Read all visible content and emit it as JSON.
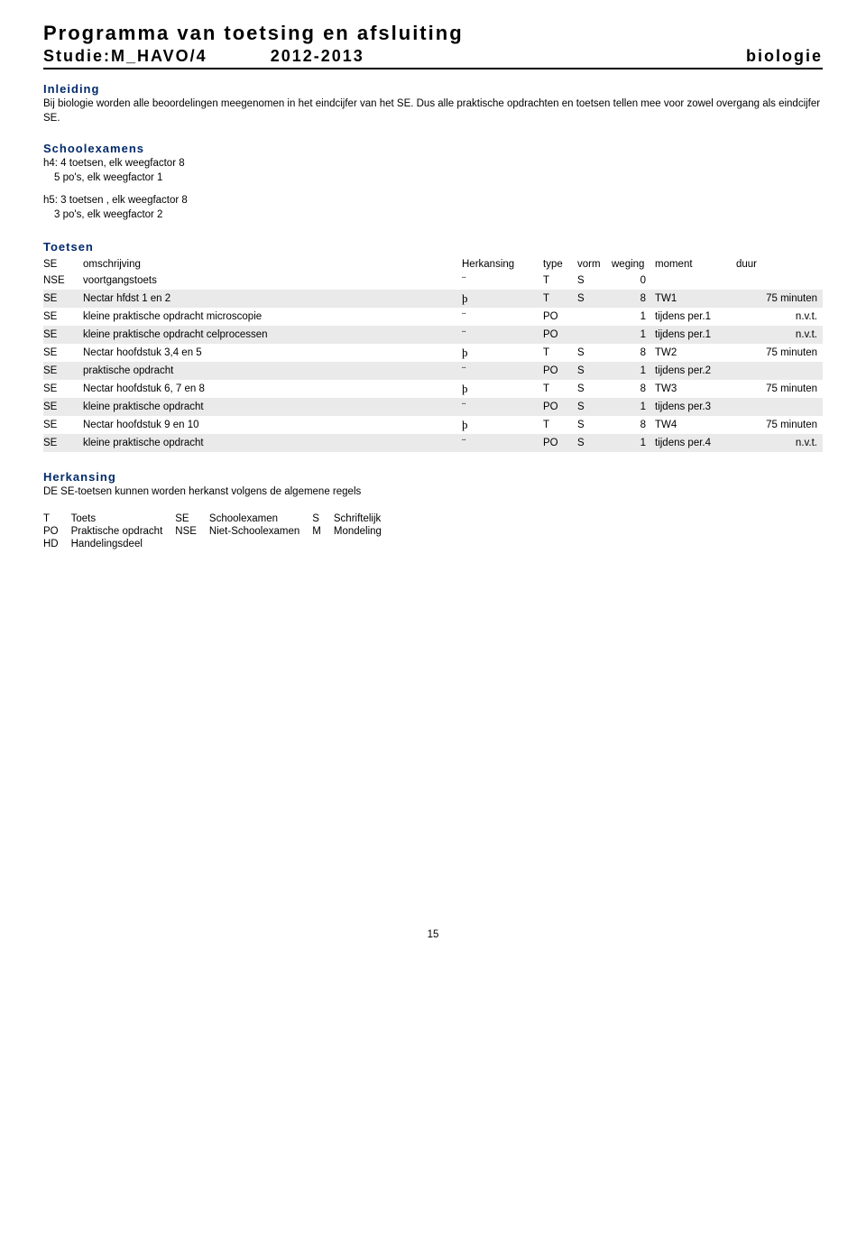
{
  "header": {
    "main_title": "Programma van toetsing en afsluiting",
    "study_label": "Studie:M_HAVO/4",
    "year": "2012-2013",
    "subject": "biologie"
  },
  "inleiding": {
    "heading": "Inleiding",
    "text": "Bij biologie worden alle beoordelingen meegenomen in het eindcijfer van het SE. Dus alle praktische opdrachten en toetsen tellen mee voor zowel overgang als eindcijfer SE."
  },
  "schoolexamens": {
    "heading": "Schoolexamens",
    "lines": [
      "h4: 4 toetsen, elk weegfactor 8",
      "5 po's, elk weegfactor 1",
      "",
      "h5: 3 toetsen , elk weegfactor 8",
      "3 po's, elk weegfactor 2"
    ]
  },
  "toetsen": {
    "heading": "Toetsen",
    "columns": {
      "se": "SE",
      "omschrijving": "omschrijving",
      "herkansing": "Herkansing",
      "type": "type",
      "vorm": "vorm",
      "weging": "weging",
      "moment": "moment",
      "duur": "duur"
    },
    "rows": [
      {
        "shaded": false,
        "se": "NSE",
        "desc": "voortgangstoets",
        "herk": "¨",
        "type": "T",
        "vorm": "S",
        "weging": "0",
        "moment": "",
        "duur": ""
      },
      {
        "shaded": true,
        "se": "SE",
        "desc": "Nectar hfdst 1 en 2",
        "herk": "þ",
        "type": "T",
        "vorm": "S",
        "weging": "8",
        "moment": "TW1",
        "duur": "75 minuten"
      },
      {
        "shaded": false,
        "se": "SE",
        "desc": "kleine praktische opdracht microscopie",
        "herk": "¨",
        "type": "PO",
        "vorm": "",
        "weging": "1",
        "moment": "tijdens per.1",
        "duur": "n.v.t."
      },
      {
        "shaded": true,
        "se": "SE",
        "desc": "kleine praktische opdracht celprocessen",
        "herk": "¨",
        "type": "PO",
        "vorm": "",
        "weging": "1",
        "moment": "tijdens per.1",
        "duur": "n.v.t."
      },
      {
        "shaded": false,
        "se": "SE",
        "desc": "Nectar hoofdstuk 3,4 en 5",
        "herk": "þ",
        "type": "T",
        "vorm": "S",
        "weging": "8",
        "moment": "TW2",
        "duur": "75 minuten"
      },
      {
        "shaded": true,
        "se": "SE",
        "desc": "praktische opdracht",
        "herk": "¨",
        "type": "PO",
        "vorm": "S",
        "weging": "1",
        "moment": "tijdens per.2",
        "duur": ""
      },
      {
        "shaded": false,
        "se": "SE",
        "desc": "Nectar hoofdstuk 6, 7 en 8",
        "herk": "þ",
        "type": "T",
        "vorm": "S",
        "weging": "8",
        "moment": "TW3",
        "duur": "75 minuten"
      },
      {
        "shaded": true,
        "se": "SE",
        "desc": "kleine praktische opdracht",
        "herk": "¨",
        "type": "PO",
        "vorm": "S",
        "weging": "1",
        "moment": "tijdens per.3",
        "duur": ""
      },
      {
        "shaded": false,
        "se": "SE",
        "desc": "Nectar hoofdstuk 9 en 10",
        "herk": "þ",
        "type": "T",
        "vorm": "S",
        "weging": "8",
        "moment": "TW4",
        "duur": "75 minuten"
      },
      {
        "shaded": true,
        "se": "SE",
        "desc": "kleine praktische opdracht",
        "herk": "¨",
        "type": "PO",
        "vorm": "S",
        "weging": "1",
        "moment": "tijdens per.4",
        "duur": "n.v.t."
      }
    ]
  },
  "herkansing": {
    "heading": "Herkansing",
    "text": "DE SE-toetsen kunnen worden herkanst volgens de algemene regels"
  },
  "legend": {
    "rows": [
      [
        "T",
        "Toets",
        "SE",
        "Schoolexamen",
        "S",
        "Schriftelijk"
      ],
      [
        "PO",
        "Praktische opdracht",
        "NSE",
        "Niet-Schoolexamen",
        "M",
        "Mondeling"
      ],
      [
        "HD",
        "Handelingsdeel",
        "",
        "",
        "",
        ""
      ]
    ]
  },
  "page_number": "15",
  "colors": {
    "heading_blue": "#00296b",
    "row_shade": "#eaeaea",
    "text": "#000000",
    "background": "#ffffff"
  }
}
